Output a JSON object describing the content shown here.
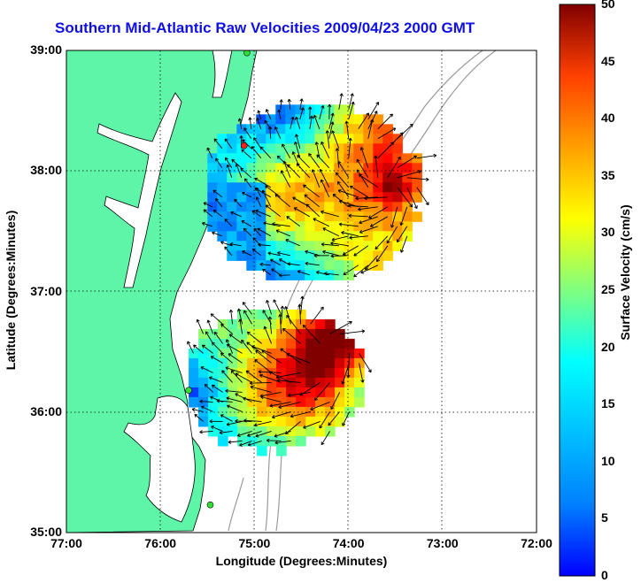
{
  "title": "Southern Mid-Atlantic Raw Velocities 2009/04/23 2000 GMT",
  "xlabel": "Longitude (Degrees:Minutes)",
  "ylabel": "Latitude (Degrees:Minutes)",
  "x_ticks": [
    {
      "value": -77,
      "label": "77:00"
    },
    {
      "value": -76,
      "label": "76:00"
    },
    {
      "value": -75,
      "label": "75:00"
    },
    {
      "value": -74,
      "label": "74:00"
    },
    {
      "value": -73,
      "label": "73:00"
    },
    {
      "value": -72,
      "label": "72:00"
    }
  ],
  "y_ticks": [
    {
      "value": 39,
      "label": "39:00"
    },
    {
      "value": 38,
      "label": "38:00"
    },
    {
      "value": 37,
      "label": "37:00"
    },
    {
      "value": 36,
      "label": "36:00"
    },
    {
      "value": 35,
      "label": "35:00"
    }
  ],
  "xlim": [
    -77,
    -72
  ],
  "ylim": [
    35,
    39
  ],
  "colorbar": {
    "label": "Surface Velocity (cm/s)",
    "range": [
      0,
      50
    ],
    "ticks": [
      "0",
      "5",
      "10",
      "15",
      "20",
      "25",
      "30",
      "35",
      "40",
      "45",
      "50"
    ],
    "colormap": "jet"
  },
  "grid": "dotted",
  "colors": {
    "land": "#5ff5a8",
    "coast": "#000000",
    "bathymetry": "#9a9a9a",
    "title": "#1010e6",
    "station": "#33dd33",
    "station_highlight": "#ff2020"
  },
  "stations": [
    {
      "lon": -75.08,
      "lat": 38.98,
      "color": "#33dd33"
    },
    {
      "lon": -75.11,
      "lat": 38.21,
      "color": "#ff2020"
    },
    {
      "lon": -75.7,
      "lat": 36.18,
      "color": "#33dd33"
    },
    {
      "lon": -75.47,
      "lat": 35.23,
      "color": "#33dd33"
    }
  ],
  "velocity_regions": [
    {
      "name": "north",
      "lon_range": [
        -75.5,
        -73.3
      ],
      "lat_range": [
        37.1,
        38.55
      ],
      "hot_center": [
        -73.6,
        37.9
      ]
    },
    {
      "name": "south",
      "lon_range": [
        -75.7,
        -73.9
      ],
      "lat_range": [
        35.7,
        36.85
      ],
      "hot_center": [
        -74.3,
        36.6
      ]
    }
  ]
}
